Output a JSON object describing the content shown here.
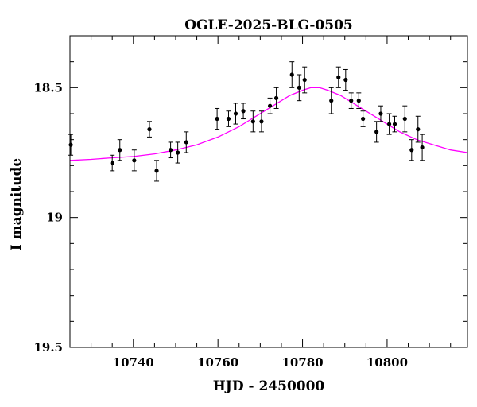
{
  "chart_data": {
    "type": "scatter",
    "title": "OGLE-2025-BLG-0505",
    "xlabel": "HJD - 2450000",
    "ylabel": "I magnitude",
    "xlim": [
      10725,
      10819
    ],
    "ylim": [
      19.5,
      18.3
    ],
    "y_inverted": true,
    "x_ticks": [
      10740,
      10760,
      10780,
      10800
    ],
    "x_tick_labels": [
      "10740",
      "10760",
      "10780",
      "10800"
    ],
    "y_ticks": [
      18.5,
      19,
      19.5
    ],
    "y_tick_labels": [
      "18.5",
      "19",
      "19.5"
    ],
    "grid": false,
    "colors": {
      "points": "#000000",
      "errorbars": "#000000",
      "model": "#ff00ff"
    },
    "series": [
      {
        "kind": "points_with_errorbars",
        "points": [
          {
            "x": 10725.2,
            "y": 18.72,
            "err": 0.04
          },
          {
            "x": 10735.0,
            "y": 18.79,
            "err": 0.03
          },
          {
            "x": 10736.8,
            "y": 18.74,
            "err": 0.04
          },
          {
            "x": 10740.2,
            "y": 18.78,
            "err": 0.04
          },
          {
            "x": 10743.8,
            "y": 18.66,
            "err": 0.03
          },
          {
            "x": 10745.5,
            "y": 18.82,
            "err": 0.04
          },
          {
            "x": 10748.8,
            "y": 18.74,
            "err": 0.03
          },
          {
            "x": 10750.5,
            "y": 18.75,
            "err": 0.04
          },
          {
            "x": 10752.5,
            "y": 18.71,
            "err": 0.04
          },
          {
            "x": 10759.8,
            "y": 18.62,
            "err": 0.04
          },
          {
            "x": 10762.5,
            "y": 18.62,
            "err": 0.03
          },
          {
            "x": 10764.2,
            "y": 18.6,
            "err": 0.04
          },
          {
            "x": 10766.0,
            "y": 18.59,
            "err": 0.03
          },
          {
            "x": 10768.3,
            "y": 18.63,
            "err": 0.04
          },
          {
            "x": 10770.3,
            "y": 18.63,
            "err": 0.04
          },
          {
            "x": 10772.3,
            "y": 18.57,
            "err": 0.03
          },
          {
            "x": 10773.8,
            "y": 18.54,
            "err": 0.04
          },
          {
            "x": 10777.5,
            "y": 18.45,
            "err": 0.05
          },
          {
            "x": 10779.2,
            "y": 18.5,
            "err": 0.05
          },
          {
            "x": 10780.5,
            "y": 18.47,
            "err": 0.05
          },
          {
            "x": 10786.8,
            "y": 18.55,
            "err": 0.05
          },
          {
            "x": 10788.5,
            "y": 18.46,
            "err": 0.04
          },
          {
            "x": 10790.2,
            "y": 18.47,
            "err": 0.04
          },
          {
            "x": 10791.5,
            "y": 18.55,
            "err": 0.03
          },
          {
            "x": 10793.3,
            "y": 18.55,
            "err": 0.03
          },
          {
            "x": 10794.3,
            "y": 18.62,
            "err": 0.03
          },
          {
            "x": 10797.5,
            "y": 18.67,
            "err": 0.04
          },
          {
            "x": 10798.5,
            "y": 18.6,
            "err": 0.03
          },
          {
            "x": 10800.5,
            "y": 18.64,
            "err": 0.04
          },
          {
            "x": 10801.8,
            "y": 18.64,
            "err": 0.03
          },
          {
            "x": 10804.2,
            "y": 18.62,
            "err": 0.05
          },
          {
            "x": 10805.8,
            "y": 18.74,
            "err": 0.04
          },
          {
            "x": 10807.3,
            "y": 18.66,
            "err": 0.05
          },
          {
            "x": 10808.3,
            "y": 18.73,
            "err": 0.05
          }
        ]
      },
      {
        "kind": "model_curve",
        "x": [
          10725,
          10730,
          10735,
          10740,
          10745,
          10750,
          10755,
          10760,
          10765,
          10768,
          10771,
          10774,
          10777,
          10780,
          10782,
          10784,
          10786,
          10789,
          10792,
          10795,
          10799,
          10803,
          10807,
          10811,
          10815,
          10819
        ],
        "y": [
          18.78,
          18.776,
          18.77,
          18.765,
          18.755,
          18.74,
          18.72,
          18.69,
          18.65,
          18.62,
          18.59,
          18.56,
          18.53,
          18.51,
          18.5,
          18.5,
          18.51,
          18.53,
          18.56,
          18.59,
          18.63,
          18.67,
          18.7,
          18.72,
          18.74,
          18.75
        ]
      }
    ]
  }
}
